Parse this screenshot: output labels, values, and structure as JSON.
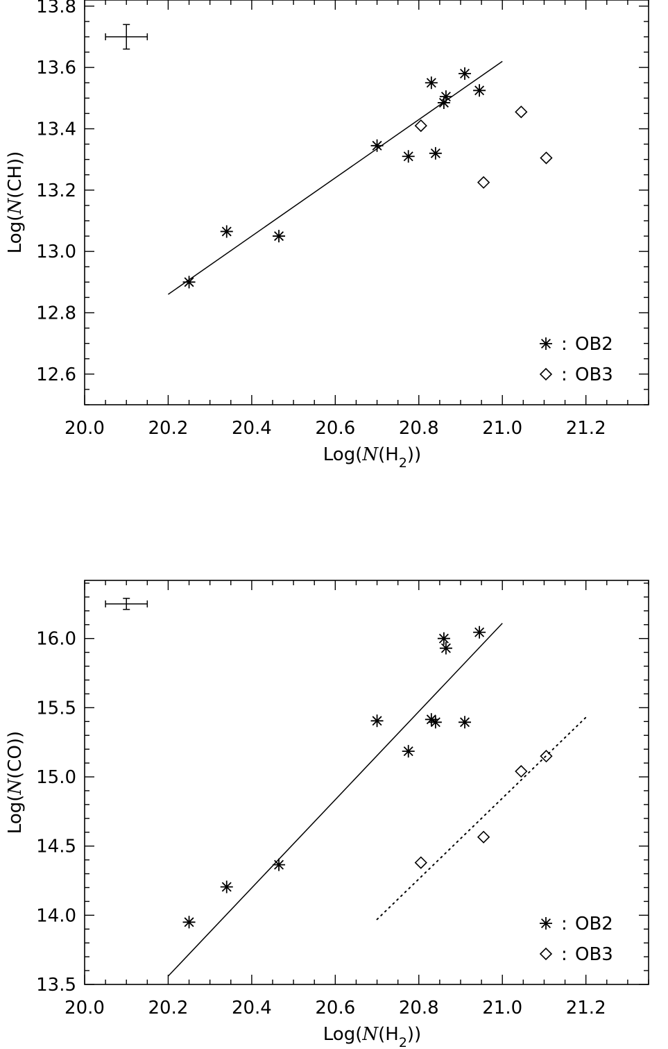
{
  "chart_data": [
    {
      "type": "scatter",
      "id": "ch-panel",
      "xlim": [
        20.0,
        21.35
      ],
      "ylim": [
        12.5,
        13.82
      ],
      "xticks": [
        "20.0",
        "20.2",
        "20.4",
        "20.6",
        "20.8",
        "21.0",
        "21.2"
      ],
      "yticks": [
        "12.6",
        "12.8",
        "13.0",
        "13.2",
        "13.4",
        "13.6",
        "13.8"
      ],
      "xlabel": {
        "prefix": "Log(",
        "italic": "N",
        "mid": "(H",
        "sub": "2",
        "suffix": "))"
      },
      "ylabel": {
        "prefix": "Log(",
        "italic": "N",
        "suffix": "(CH))"
      },
      "error_bar": {
        "x": 20.1,
        "y": 13.7,
        "xerr": 0.05,
        "yerr": 0.04
      },
      "series": [
        {
          "name": "OB2",
          "marker": "asterisk",
          "x": [
            20.25,
            20.34,
            20.465,
            20.7,
            20.775,
            20.83,
            20.84,
            20.86,
            20.865,
            20.91,
            20.945
          ],
          "y": [
            12.9,
            13.065,
            13.05,
            13.345,
            13.31,
            13.55,
            13.32,
            13.485,
            13.505,
            13.58,
            13.525
          ]
        },
        {
          "name": "OB3",
          "marker": "diamond",
          "x": [
            20.805,
            20.955,
            21.045,
            21.105
          ],
          "y": [
            13.41,
            13.225,
            13.455,
            13.305
          ]
        }
      ],
      "fit_lines": [
        {
          "style": "solid",
          "x": [
            20.2,
            21.0
          ],
          "y": [
            12.86,
            13.62
          ]
        }
      ],
      "legend": {
        "position": "bottom-right",
        "separator": ":"
      }
    },
    {
      "type": "scatter",
      "id": "co-panel",
      "xlim": [
        20.0,
        21.35
      ],
      "ylim": [
        13.5,
        16.42
      ],
      "xticks": [
        "20.0",
        "20.2",
        "20.4",
        "20.6",
        "20.8",
        "21.0",
        "21.2"
      ],
      "yticks": [
        "13.5",
        "14.0",
        "14.5",
        "15.0",
        "15.5",
        "16.0"
      ],
      "xlabel": {
        "prefix": "Log(",
        "italic": "N",
        "mid": "(H",
        "sub": "2",
        "suffix": "))"
      },
      "ylabel": {
        "prefix": "Log(",
        "italic": "N",
        "suffix": "(CO))"
      },
      "error_bar": {
        "x": 20.1,
        "y": 16.25,
        "xerr": 0.05,
        "yerr": 0.04
      },
      "series": [
        {
          "name": "OB2",
          "marker": "asterisk",
          "x": [
            20.25,
            20.34,
            20.465,
            20.7,
            20.775,
            20.83,
            20.84,
            20.86,
            20.865,
            20.91,
            20.945
          ],
          "y": [
            13.95,
            14.205,
            14.365,
            15.405,
            15.185,
            15.415,
            15.395,
            16.0,
            15.93,
            15.395,
            16.045
          ]
        },
        {
          "name": "OB3",
          "marker": "diamond",
          "x": [
            20.805,
            20.955,
            21.045,
            21.105
          ],
          "y": [
            14.38,
            14.565,
            15.04,
            15.15
          ]
        }
      ],
      "fit_lines": [
        {
          "style": "solid",
          "x": [
            20.2,
            21.0
          ],
          "y": [
            13.56,
            16.11
          ]
        },
        {
          "style": "dotted",
          "x": [
            20.7,
            21.2
          ],
          "y": [
            13.97,
            15.43
          ]
        }
      ],
      "legend": {
        "position": "bottom-right",
        "separator": ":"
      }
    }
  ]
}
